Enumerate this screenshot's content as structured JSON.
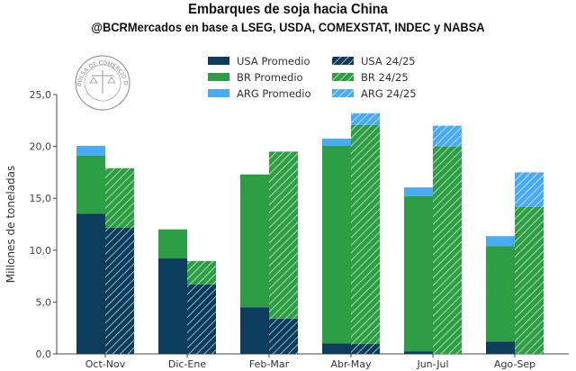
{
  "chart_data": {
    "type": "bar",
    "title": "Embarques de soja hacia China",
    "subtitle": "@BCRMercados en base a LSEG, USDA,  COMEXSTAT, INDEC y NABSA",
    "xlabel": "",
    "ylabel": "Millones de toneladas",
    "ylim": [
      0,
      25
    ],
    "yticks": [
      "0,0",
      "5,0",
      "10,0",
      "15,0",
      "20,0",
      "25,0"
    ],
    "ytick_values": [
      0,
      5,
      10,
      15,
      20,
      25
    ],
    "grid": false,
    "legend_position": "top-center",
    "categories": [
      "Oct-Nov",
      "Dic-Ene",
      "Feb-Mar",
      "Abr-May",
      "Jun-Jul",
      "Ago-Sep"
    ],
    "groups": [
      {
        "name": "Promedio",
        "hatched": false,
        "series": [
          {
            "name": "USA Promedio",
            "color": "#0d3d5c",
            "values": [
              13.5,
              9.2,
              4.5,
              1.0,
              0.25,
              1.2
            ]
          },
          {
            "name": "BR Promedio",
            "color": "#2e9e45",
            "values": [
              5.6,
              2.8,
              12.8,
              19.05,
              14.95,
              9.2
            ]
          },
          {
            "name": "ARG Promedio",
            "color": "#4aabf5",
            "values": [
              0.95,
              0.0,
              0.0,
              0.7,
              0.85,
              0.95
            ]
          }
        ]
      },
      {
        "name": "24/25",
        "hatched": true,
        "series": [
          {
            "name": "USA 24/25",
            "color": "#0d3d5c",
            "values": [
              12.15,
              6.7,
              3.4,
              0.95,
              0.0,
              0.0
            ]
          },
          {
            "name": "BR 24/25",
            "color": "#2e9e45",
            "values": [
              5.75,
              2.25,
              16.1,
              21.1,
              20.0,
              14.15
            ]
          },
          {
            "name": "ARG 24/25",
            "color": "#4aabf5",
            "values": [
              0.0,
              0.0,
              0.0,
              1.15,
              2.0,
              3.35
            ]
          }
        ]
      }
    ]
  },
  "logo": {
    "text": "BOLSA DE COMERCIO DE ROSARIO"
  }
}
